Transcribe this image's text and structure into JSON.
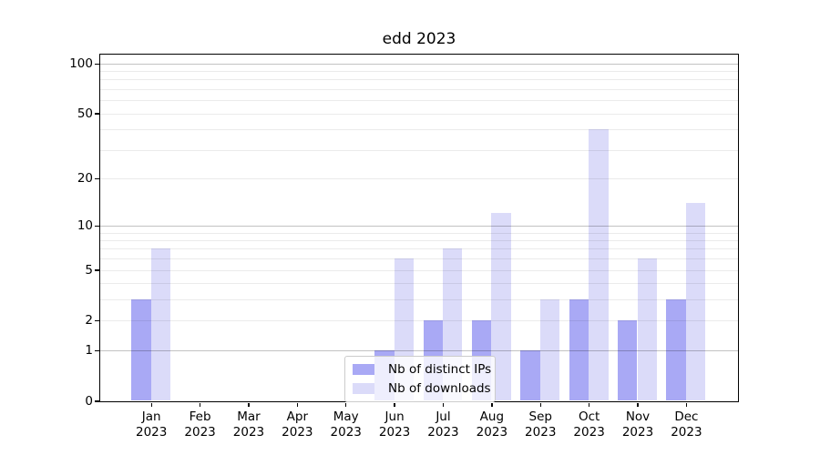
{
  "chart_data": {
    "type": "bar",
    "title": "edd 2023",
    "categories": [
      "Jan",
      "Feb",
      "Mar",
      "Apr",
      "May",
      "Jun",
      "Jul",
      "Aug",
      "Sep",
      "Oct",
      "Nov",
      "Dec"
    ],
    "category_year_label": "2023",
    "series": [
      {
        "name": "Nb of distinct IPs",
        "color": "#a9a9f5",
        "values": [
          3,
          0,
          0,
          0,
          0,
          1,
          2,
          2,
          1,
          3,
          2,
          3
        ]
      },
      {
        "name": "Nb of downloads",
        "color": "#dbdbf9",
        "values": [
          7,
          0,
          0,
          0,
          0,
          6,
          7,
          12,
          3,
          40,
          6,
          14
        ]
      }
    ],
    "yscale": "log10(1+v)",
    "yticks": [
      0,
      1,
      2,
      5,
      10,
      20,
      50,
      100
    ],
    "major_grid_values": [
      1,
      10,
      100
    ],
    "minor_grid_values": [
      2,
      3,
      4,
      5,
      6,
      7,
      8,
      9,
      20,
      30,
      40,
      50,
      60,
      70,
      80,
      90
    ],
    "ylim": [
      0,
      113
    ],
    "grid": true,
    "legend_position": "lower center",
    "xlabel": "",
    "ylabel": ""
  }
}
